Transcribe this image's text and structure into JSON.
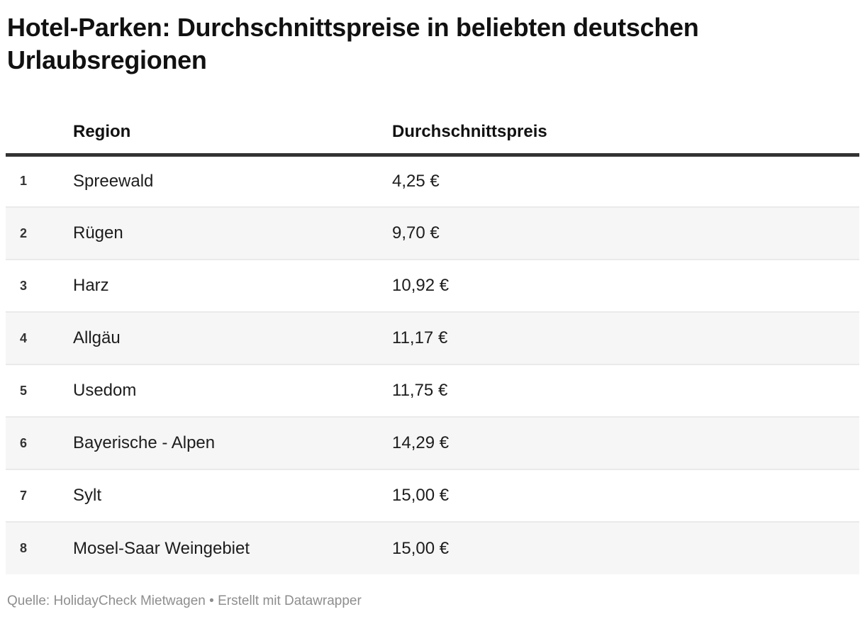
{
  "header": {
    "title": "Hotel-Parken: Durchschnittspreise in beliebten deutschen Urlaubsregionen"
  },
  "table": {
    "columns": {
      "rank": "",
      "region": "Region",
      "price": "Durchschnittspreis"
    },
    "rows": [
      {
        "rank": "1",
        "region": "Spreewald",
        "price": "4,25 €"
      },
      {
        "rank": "2",
        "region": "Rügen",
        "price": "9,70 €"
      },
      {
        "rank": "3",
        "region": "Harz",
        "price": "10,92 €"
      },
      {
        "rank": "4",
        "region": "Allgäu",
        "price": "11,17 €"
      },
      {
        "rank": "5",
        "region": "Usedom",
        "price": "11,75 €"
      },
      {
        "rank": "6",
        "region": "Bayerische - Alpen",
        "price": "14,29 €"
      },
      {
        "rank": "7",
        "region": "Sylt",
        "price": "15,00 €"
      },
      {
        "rank": "8",
        "region": "Mosel-Saar Weingebiet",
        "price": "15,00 €"
      }
    ]
  },
  "footer": {
    "source": "Quelle: HolidayCheck Mietwagen",
    "separator": "•",
    "attribution": "Erstellt mit Datawrapper"
  },
  "chart_data": {
    "type": "table",
    "title": "Hotel-Parken: Durchschnittspreise in beliebten deutschen Urlaubsregionen",
    "columns": [
      "Region",
      "Durchschnittspreis"
    ],
    "categories": [
      "Spreewald",
      "Rügen",
      "Harz",
      "Allgäu",
      "Usedom",
      "Bayerische - Alpen",
      "Sylt",
      "Mosel-Saar Weingebiet"
    ],
    "values": [
      4.25,
      9.7,
      10.92,
      11.17,
      11.75,
      14.29,
      15.0,
      15.0
    ],
    "unit": "€",
    "value_format": "german-decimal-comma",
    "source": "HolidayCheck Mietwagen",
    "tool": "Datawrapper",
    "row_striping": true,
    "stripe_color": "#f6f6f6"
  },
  "colors": {
    "title": "#111111",
    "body_text": "#1d1d1d",
    "rank_text": "#333333",
    "stripe": "#f6f6f6",
    "row_border": "#eaeaea",
    "header_border": "#333333",
    "footer_text": "#8e8e8e",
    "background": "#ffffff"
  }
}
